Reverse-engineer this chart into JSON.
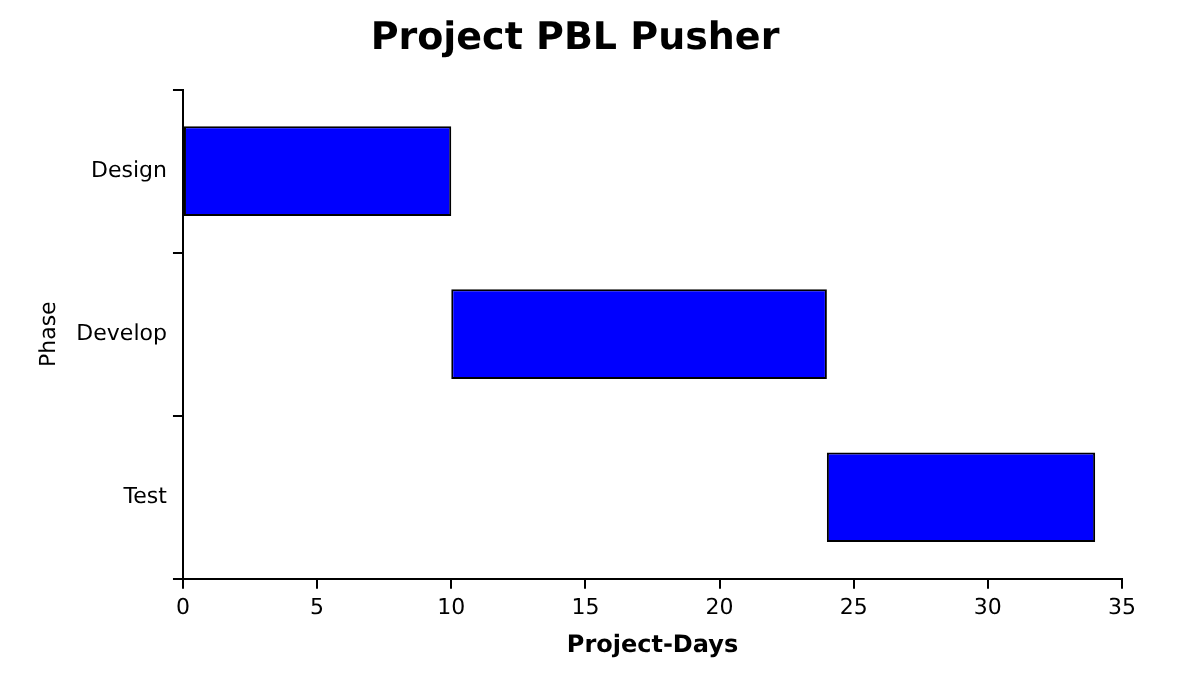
{
  "chart_data": {
    "type": "bar",
    "orientation": "horizontal",
    "title": "Project PBL Pusher",
    "xlabel": "Project-Days",
    "ylabel": "Phase",
    "categories": [
      "Design",
      "Develop",
      "Test"
    ],
    "values": [
      10,
      14,
      10
    ],
    "base": [
      0,
      10,
      24
    ],
    "color": "#0000ff",
    "xlim": [
      0,
      35
    ],
    "xticks": [
      0,
      5,
      10,
      15,
      20,
      25,
      30,
      35
    ],
    "grid": false,
    "legend": false
  }
}
